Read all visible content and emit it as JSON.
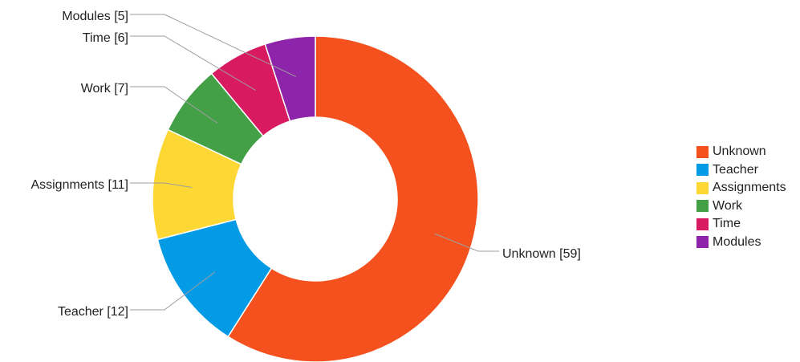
{
  "chart_data": {
    "type": "pie",
    "donut": true,
    "slices": [
      {
        "label": "Unknown",
        "value": 59,
        "display": "Unknown [59]",
        "color": "#f4511e"
      },
      {
        "label": "Teacher",
        "value": 12,
        "display": "Teacher [12]",
        "color": "#039be5"
      },
      {
        "label": "Assignments",
        "value": 11,
        "display": "Assignments [11]",
        "color": "#fdd835"
      },
      {
        "label": "Work",
        "value": 7,
        "display": "Work [7]",
        "color": "#43a047"
      },
      {
        "label": "Time",
        "value": 6,
        "display": "Time [6]",
        "color": "#d81b60"
      },
      {
        "label": "Modules",
        "value": 5,
        "display": "Modules [5]",
        "color": "#8e24aa"
      }
    ],
    "legend": {
      "position": "right",
      "items": [
        "Unknown",
        "Teacher",
        "Assignments",
        "Work",
        "Time",
        "Modules"
      ]
    }
  }
}
